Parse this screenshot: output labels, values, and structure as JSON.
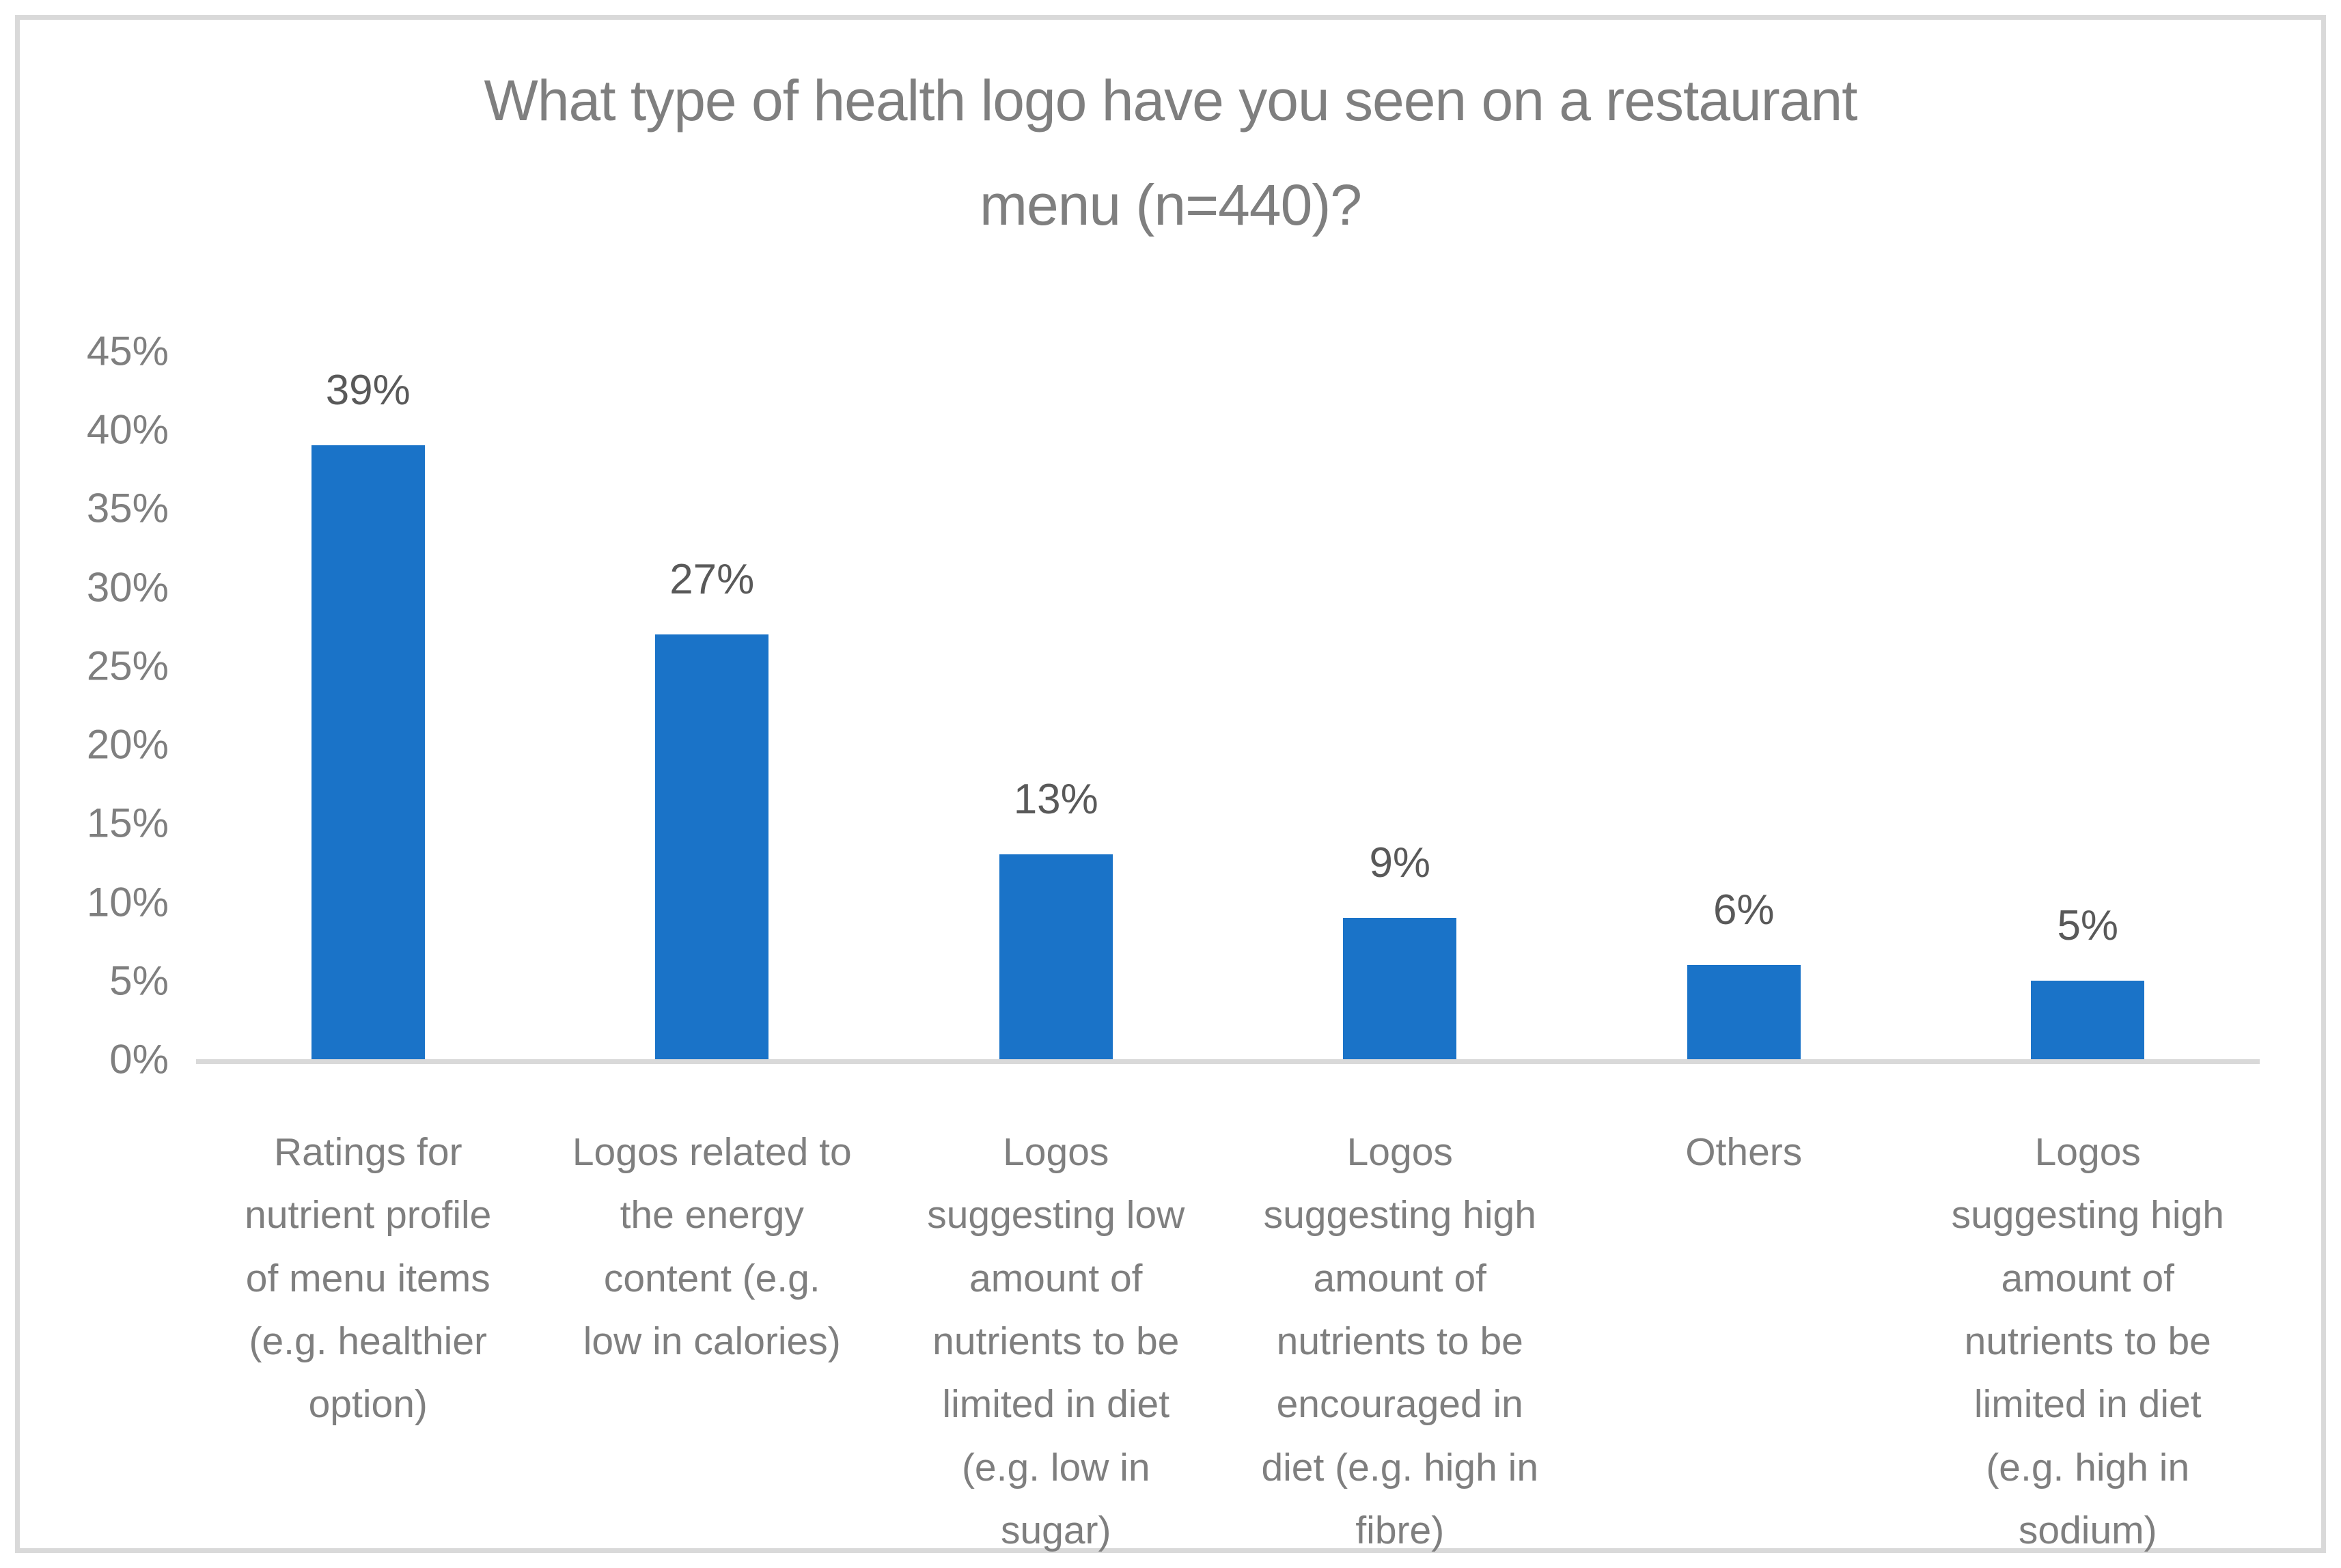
{
  "chart_data": {
    "type": "bar",
    "title": "What type of health logo have you seen on a restaurant menu (n=440)?",
    "title_wrapped": "What type of health logo have you seen on a restaurant\nmenu (n=440)?",
    "categories": [
      "Ratings for nutrient profile of menu items (e.g. healthier option)",
      "Logos related to the energy content (e.g. low in calories)",
      "Logos suggesting low amount of nutrients to be limited in diet (e.g. low in sugar)",
      "Logos suggesting high amount of nutrients to be encouraged in diet (e.g. high in fibre)",
      "Others",
      "Logos suggesting high amount of nutrients to be limited in diet (e.g. high in sodium)"
    ],
    "categories_wrapped": [
      "Ratings for\nnutrient profile\nof menu items\n(e.g. healthier\noption)",
      "Logos related to\nthe energy\ncontent (e.g.\nlow in calories)",
      "Logos\nsuggesting low\namount of\nnutrients to be\nlimited in diet\n(e.g. low in\nsugar)",
      "Logos\nsuggesting high\namount of\nnutrients to be\nencouraged in\ndiet (e.g. high in\nfibre)",
      "Others",
      "Logos\nsuggesting high\namount of\nnutrients to be\nlimited in diet\n(e.g. high in\nsodium)"
    ],
    "values": [
      39,
      27,
      13,
      9,
      6,
      5
    ],
    "data_labels": [
      "39%",
      "27%",
      "13%",
      "9%",
      "6%",
      "5%"
    ],
    "yticks": [
      "45%",
      "40%",
      "35%",
      "30%",
      "25%",
      "20%",
      "15%",
      "10%",
      "5%",
      "0%"
    ],
    "ylim": [
      0,
      45
    ],
    "xlabel": "",
    "ylabel": "",
    "grid": false,
    "legend_position": "none",
    "colors": {
      "bar": "#1A73C8",
      "axis_line": "#D9D9D9",
      "frame_border": "#D9D9D9",
      "title_text": "#7F7F7F",
      "tick_text": "#7F7F7F",
      "category_text": "#7F7F7F",
      "data_label_text": "#595959",
      "background": "#FFFFFF"
    }
  }
}
